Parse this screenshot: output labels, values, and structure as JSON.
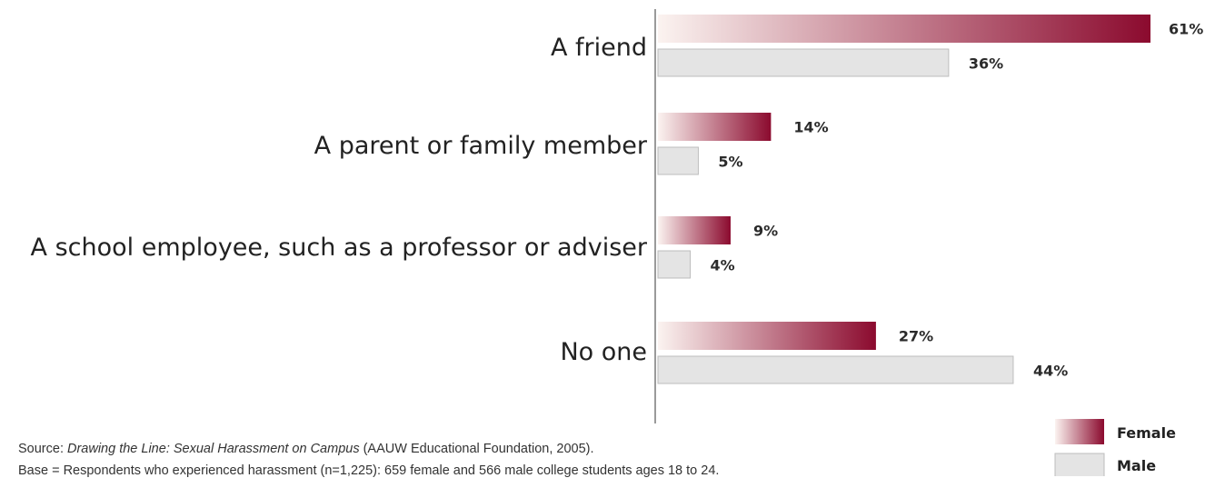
{
  "chart_data": {
    "type": "bar",
    "orientation": "horizontal",
    "categories": [
      "A friend",
      "A parent or family member",
      "A school employee, such as a professor or adviser",
      "No one"
    ],
    "series": [
      {
        "name": "Female",
        "values": [
          61,
          14,
          9,
          27
        ],
        "labels": [
          "61%",
          "14%",
          "9%",
          "27%"
        ],
        "color_start": "#fbf3f0",
        "color_end": "#8b0a2e"
      },
      {
        "name": "Male",
        "values": [
          36,
          5,
          4,
          44
        ],
        "labels": [
          "36%",
          "5%",
          "4%",
          "44%"
        ],
        "color": "#e4e4e4",
        "border_color": "#bdbdbd"
      }
    ],
    "xlim": [
      0,
      70
    ],
    "grid": false,
    "legend_position": "bottom-right"
  },
  "source": {
    "prefix": "Source: ",
    "title": "Drawing the Line: Sexual Harassment on Campus",
    "suffix": " (AAUW Educational Foundation, 2005)."
  },
  "base_note": "Base = Respondents who experienced harassment (n=1,225): 659 female and 566 male college students ages 18 to 24."
}
